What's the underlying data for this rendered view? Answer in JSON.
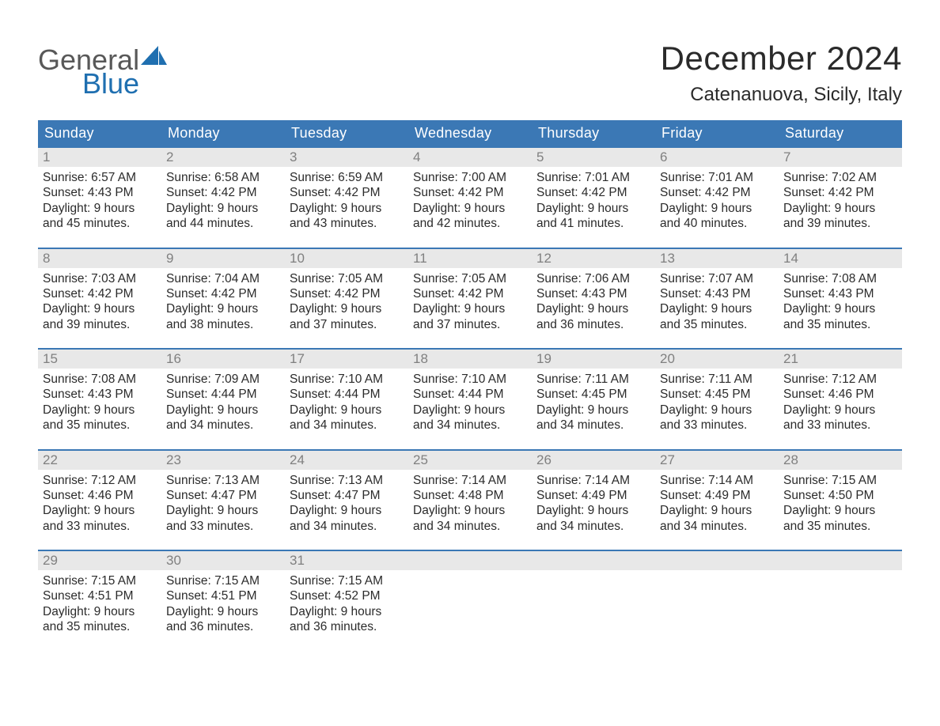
{
  "logo": {
    "word1": "General",
    "word2": "Blue",
    "word1_color": "#585858",
    "word2_color": "#1f6fb0",
    "sail_color": "#1f6fb0"
  },
  "header": {
    "title": "December 2024",
    "subtitle": "Catenanuova, Sicily, Italy",
    "title_color": "#2a2a2a",
    "subtitle_color": "#2a2a2a"
  },
  "calendar": {
    "type": "table",
    "day_header_bg": "#3b78b5",
    "day_header_fg": "#ffffff",
    "daynum_bg": "#e8e8e8",
    "daynum_fg": "#808080",
    "row_separator_color": "#3b78b5",
    "body_text_color": "#2b2b2b",
    "background_color": "#ffffff",
    "columns": [
      "Sunday",
      "Monday",
      "Tuesday",
      "Wednesday",
      "Thursday",
      "Friday",
      "Saturday"
    ],
    "weeks": [
      [
        {
          "num": "1",
          "sunrise": "Sunrise: 6:57 AM",
          "sunset": "Sunset: 4:43 PM",
          "d1": "Daylight: 9 hours",
          "d2": "and 45 minutes."
        },
        {
          "num": "2",
          "sunrise": "Sunrise: 6:58 AM",
          "sunset": "Sunset: 4:42 PM",
          "d1": "Daylight: 9 hours",
          "d2": "and 44 minutes."
        },
        {
          "num": "3",
          "sunrise": "Sunrise: 6:59 AM",
          "sunset": "Sunset: 4:42 PM",
          "d1": "Daylight: 9 hours",
          "d2": "and 43 minutes."
        },
        {
          "num": "4",
          "sunrise": "Sunrise: 7:00 AM",
          "sunset": "Sunset: 4:42 PM",
          "d1": "Daylight: 9 hours",
          "d2": "and 42 minutes."
        },
        {
          "num": "5",
          "sunrise": "Sunrise: 7:01 AM",
          "sunset": "Sunset: 4:42 PM",
          "d1": "Daylight: 9 hours",
          "d2": "and 41 minutes."
        },
        {
          "num": "6",
          "sunrise": "Sunrise: 7:01 AM",
          "sunset": "Sunset: 4:42 PM",
          "d1": "Daylight: 9 hours",
          "d2": "and 40 minutes."
        },
        {
          "num": "7",
          "sunrise": "Sunrise: 7:02 AM",
          "sunset": "Sunset: 4:42 PM",
          "d1": "Daylight: 9 hours",
          "d2": "and 39 minutes."
        }
      ],
      [
        {
          "num": "8",
          "sunrise": "Sunrise: 7:03 AM",
          "sunset": "Sunset: 4:42 PM",
          "d1": "Daylight: 9 hours",
          "d2": "and 39 minutes."
        },
        {
          "num": "9",
          "sunrise": "Sunrise: 7:04 AM",
          "sunset": "Sunset: 4:42 PM",
          "d1": "Daylight: 9 hours",
          "d2": "and 38 minutes."
        },
        {
          "num": "10",
          "sunrise": "Sunrise: 7:05 AM",
          "sunset": "Sunset: 4:42 PM",
          "d1": "Daylight: 9 hours",
          "d2": "and 37 minutes."
        },
        {
          "num": "11",
          "sunrise": "Sunrise: 7:05 AM",
          "sunset": "Sunset: 4:42 PM",
          "d1": "Daylight: 9 hours",
          "d2": "and 37 minutes."
        },
        {
          "num": "12",
          "sunrise": "Sunrise: 7:06 AM",
          "sunset": "Sunset: 4:43 PM",
          "d1": "Daylight: 9 hours",
          "d2": "and 36 minutes."
        },
        {
          "num": "13",
          "sunrise": "Sunrise: 7:07 AM",
          "sunset": "Sunset: 4:43 PM",
          "d1": "Daylight: 9 hours",
          "d2": "and 35 minutes."
        },
        {
          "num": "14",
          "sunrise": "Sunrise: 7:08 AM",
          "sunset": "Sunset: 4:43 PM",
          "d1": "Daylight: 9 hours",
          "d2": "and 35 minutes."
        }
      ],
      [
        {
          "num": "15",
          "sunrise": "Sunrise: 7:08 AM",
          "sunset": "Sunset: 4:43 PM",
          "d1": "Daylight: 9 hours",
          "d2": "and 35 minutes."
        },
        {
          "num": "16",
          "sunrise": "Sunrise: 7:09 AM",
          "sunset": "Sunset: 4:44 PM",
          "d1": "Daylight: 9 hours",
          "d2": "and 34 minutes."
        },
        {
          "num": "17",
          "sunrise": "Sunrise: 7:10 AM",
          "sunset": "Sunset: 4:44 PM",
          "d1": "Daylight: 9 hours",
          "d2": "and 34 minutes."
        },
        {
          "num": "18",
          "sunrise": "Sunrise: 7:10 AM",
          "sunset": "Sunset: 4:44 PM",
          "d1": "Daylight: 9 hours",
          "d2": "and 34 minutes."
        },
        {
          "num": "19",
          "sunrise": "Sunrise: 7:11 AM",
          "sunset": "Sunset: 4:45 PM",
          "d1": "Daylight: 9 hours",
          "d2": "and 34 minutes."
        },
        {
          "num": "20",
          "sunrise": "Sunrise: 7:11 AM",
          "sunset": "Sunset: 4:45 PM",
          "d1": "Daylight: 9 hours",
          "d2": "and 33 minutes."
        },
        {
          "num": "21",
          "sunrise": "Sunrise: 7:12 AM",
          "sunset": "Sunset: 4:46 PM",
          "d1": "Daylight: 9 hours",
          "d2": "and 33 minutes."
        }
      ],
      [
        {
          "num": "22",
          "sunrise": "Sunrise: 7:12 AM",
          "sunset": "Sunset: 4:46 PM",
          "d1": "Daylight: 9 hours",
          "d2": "and 33 minutes."
        },
        {
          "num": "23",
          "sunrise": "Sunrise: 7:13 AM",
          "sunset": "Sunset: 4:47 PM",
          "d1": "Daylight: 9 hours",
          "d2": "and 33 minutes."
        },
        {
          "num": "24",
          "sunrise": "Sunrise: 7:13 AM",
          "sunset": "Sunset: 4:47 PM",
          "d1": "Daylight: 9 hours",
          "d2": "and 34 minutes."
        },
        {
          "num": "25",
          "sunrise": "Sunrise: 7:14 AM",
          "sunset": "Sunset: 4:48 PM",
          "d1": "Daylight: 9 hours",
          "d2": "and 34 minutes."
        },
        {
          "num": "26",
          "sunrise": "Sunrise: 7:14 AM",
          "sunset": "Sunset: 4:49 PM",
          "d1": "Daylight: 9 hours",
          "d2": "and 34 minutes."
        },
        {
          "num": "27",
          "sunrise": "Sunrise: 7:14 AM",
          "sunset": "Sunset: 4:49 PM",
          "d1": "Daylight: 9 hours",
          "d2": "and 34 minutes."
        },
        {
          "num": "28",
          "sunrise": "Sunrise: 7:15 AM",
          "sunset": "Sunset: 4:50 PM",
          "d1": "Daylight: 9 hours",
          "d2": "and 35 minutes."
        }
      ],
      [
        {
          "num": "29",
          "sunrise": "Sunrise: 7:15 AM",
          "sunset": "Sunset: 4:51 PM",
          "d1": "Daylight: 9 hours",
          "d2": "and 35 minutes."
        },
        {
          "num": "30",
          "sunrise": "Sunrise: 7:15 AM",
          "sunset": "Sunset: 4:51 PM",
          "d1": "Daylight: 9 hours",
          "d2": "and 36 minutes."
        },
        {
          "num": "31",
          "sunrise": "Sunrise: 7:15 AM",
          "sunset": "Sunset: 4:52 PM",
          "d1": "Daylight: 9 hours",
          "d2": "and 36 minutes."
        },
        null,
        null,
        null,
        null
      ]
    ]
  }
}
